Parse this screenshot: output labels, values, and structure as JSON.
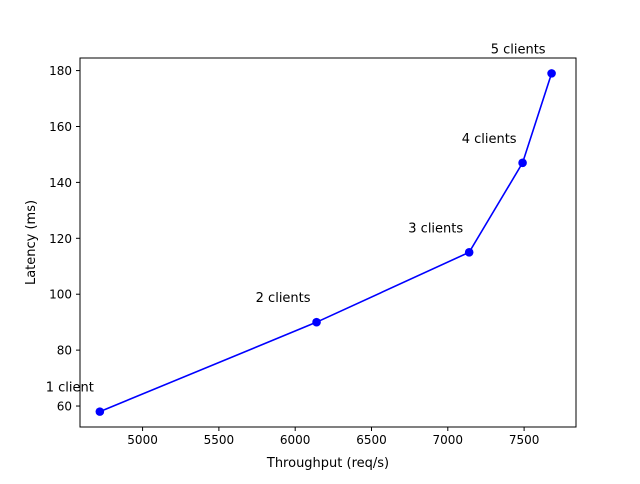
{
  "chart_data": {
    "type": "line",
    "title": "",
    "xlabel": "Throughput (req/s)",
    "ylabel": "Latency (ms)",
    "xlim": [
      4590,
      7840
    ],
    "ylim": [
      52.5,
      184.5
    ],
    "xticks": [
      5000,
      5500,
      6000,
      6500,
      7000,
      7500
    ],
    "yticks": [
      60,
      80,
      100,
      120,
      140,
      160,
      180
    ],
    "grid": false,
    "legend": "none",
    "marker": "circle",
    "color": "#0000ff",
    "series": [
      {
        "x": [
          4720,
          6140,
          7140,
          7490,
          7680
        ],
        "y": [
          58,
          90,
          115,
          147,
          179
        ],
        "labels": [
          "1 client",
          "2 clients",
          "3 clients",
          "4 clients",
          "5 clients"
        ]
      }
    ]
  }
}
